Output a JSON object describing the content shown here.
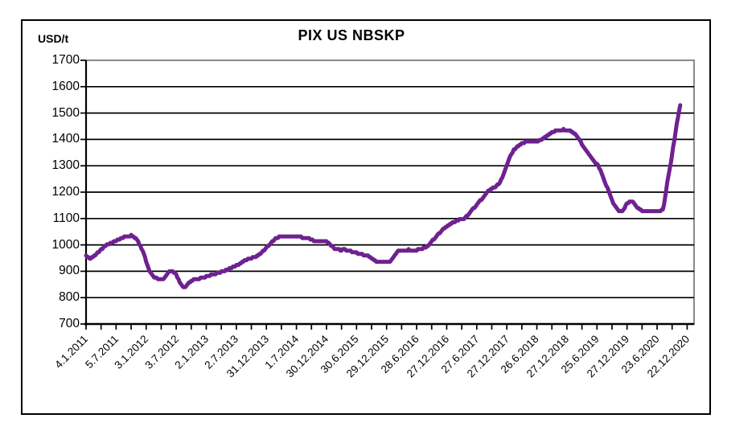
{
  "chart_data": {
    "type": "line",
    "title": "PIX US NBSKP",
    "legend": "none",
    "grid": "horizontal",
    "y_axis": {
      "label": "USD/t",
      "min": 700,
      "max": 1700,
      "step": 100,
      "tick_labels": [
        "1700",
        "1600",
        "1500",
        "1400",
        "1300",
        "1200",
        "1100",
        "1000",
        "900",
        "800",
        "700"
      ]
    },
    "x_axis": {
      "tick_labels": [
        "4.1.2011",
        "5.7.2011",
        "3.1.2012",
        "3.7.2012",
        "2.1.2013",
        "2.7.2013",
        "31.12.2013",
        "1.7.2014",
        "30.12.2014",
        "30.6.2015",
        "29.12.2015",
        "28.6.2016",
        "27.12.2016",
        "27.6.2017",
        "27.12.2017",
        "26.6.2018",
        "27.12.2018",
        "25.6.2019",
        "27.12.2019",
        "23.6.2020",
        "22.12.2020"
      ],
      "weeks_per_label": 26,
      "weeks_per_minor_tick": 13,
      "axis_span_weeks": 526
    },
    "series": [
      {
        "name": "PIX US NBSKP price",
        "unit": "USD/t",
        "color": "#6E2190",
        "x_unit": "weeks since 4.1.2011",
        "points": [
          [
            0,
            958
          ],
          [
            2,
            951
          ],
          [
            4,
            950
          ],
          [
            6,
            955
          ],
          [
            9,
            966
          ],
          [
            12,
            978
          ],
          [
            15,
            991
          ],
          [
            18,
            1000
          ],
          [
            21,
            1006
          ],
          [
            24,
            1011
          ],
          [
            27,
            1018
          ],
          [
            30,
            1024
          ],
          [
            33,
            1030
          ],
          [
            36,
            1034
          ],
          [
            39,
            1035
          ],
          [
            41,
            1032
          ],
          [
            43,
            1025
          ],
          [
            45,
            1013
          ],
          [
            47,
            996
          ],
          [
            49,
            976
          ],
          [
            51,
            952
          ],
          [
            53,
            922
          ],
          [
            55,
            899
          ],
          [
            57,
            885
          ],
          [
            59,
            877
          ],
          [
            62,
            871
          ],
          [
            66,
            870
          ],
          [
            68,
            875
          ],
          [
            70,
            889
          ],
          [
            72,
            897
          ],
          [
            75,
            898
          ],
          [
            77,
            892
          ],
          [
            79,
            878
          ],
          [
            81,
            858
          ],
          [
            83,
            844
          ],
          [
            85,
            838
          ],
          [
            87,
            845
          ],
          [
            89,
            856
          ],
          [
            91,
            864
          ],
          [
            94,
            869
          ],
          [
            98,
            872
          ],
          [
            103,
            878
          ],
          [
            108,
            885
          ],
          [
            113,
            892
          ],
          [
            118,
            899
          ],
          [
            123,
            907
          ],
          [
            128,
            917
          ],
          [
            132,
            926
          ],
          [
            136,
            937
          ],
          [
            140,
            946
          ],
          [
            144,
            951
          ],
          [
            147,
            955
          ],
          [
            150,
            963
          ],
          [
            153,
            975
          ],
          [
            156,
            988
          ],
          [
            159,
            1003
          ],
          [
            162,
            1015
          ],
          [
            164,
            1023
          ],
          [
            166,
            1028
          ],
          [
            169,
            1031
          ],
          [
            176,
            1030
          ],
          [
            183,
            1030
          ],
          [
            189,
            1028
          ],
          [
            192,
            1025
          ],
          [
            194,
            1022
          ],
          [
            196,
            1018
          ],
          [
            198,
            1015
          ],
          [
            204,
            1015
          ],
          [
            208,
            1013
          ],
          [
            210,
            1007
          ],
          [
            212,
            998
          ],
          [
            214,
            988
          ],
          [
            216,
            982
          ],
          [
            218,
            982
          ],
          [
            220,
            980
          ],
          [
            223,
            982
          ],
          [
            226,
            979
          ],
          [
            229,
            975
          ],
          [
            232,
            972
          ],
          [
            235,
            968
          ],
          [
            238,
            965
          ],
          [
            241,
            961
          ],
          [
            244,
            957
          ],
          [
            247,
            950
          ],
          [
            249,
            943
          ],
          [
            251,
            938
          ],
          [
            254,
            936
          ],
          [
            258,
            936
          ],
          [
            261,
            933
          ],
          [
            263,
            936
          ],
          [
            265,
            948
          ],
          [
            267,
            962
          ],
          [
            269,
            972
          ],
          [
            271,
            978
          ],
          [
            275,
            978
          ],
          [
            279,
            981
          ],
          [
            283,
            979
          ],
          [
            287,
            981
          ],
          [
            290,
            985
          ],
          [
            293,
            990
          ],
          [
            296,
            995
          ],
          [
            298,
            1005
          ],
          [
            300,
            1017
          ],
          [
            302,
            1028
          ],
          [
            304,
            1037
          ],
          [
            306,
            1046
          ],
          [
            308,
            1055
          ],
          [
            311,
            1067
          ],
          [
            314,
            1075
          ],
          [
            317,
            1083
          ],
          [
            320,
            1091
          ],
          [
            323,
            1095
          ],
          [
            326,
            1097
          ],
          [
            328,
            1102
          ],
          [
            330,
            1112
          ],
          [
            333,
            1127
          ],
          [
            336,
            1142
          ],
          [
            339,
            1158
          ],
          [
            342,
            1172
          ],
          [
            345,
            1188
          ],
          [
            347,
            1200
          ],
          [
            350,
            1212
          ],
          [
            353,
            1217
          ],
          [
            355,
            1222
          ],
          [
            358,
            1238
          ],
          [
            360,
            1255
          ],
          [
            362,
            1275
          ],
          [
            364,
            1300
          ],
          [
            366,
            1325
          ],
          [
            368,
            1345
          ],
          [
            370,
            1360
          ],
          [
            372,
            1368
          ],
          [
            375,
            1378
          ],
          [
            378,
            1386
          ],
          [
            381,
            1392
          ],
          [
            386,
            1393
          ],
          [
            391,
            1394
          ],
          [
            394,
            1400
          ],
          [
            398,
            1412
          ],
          [
            401,
            1420
          ],
          [
            404,
            1428
          ],
          [
            407,
            1433
          ],
          [
            410,
            1436
          ],
          [
            413,
            1437
          ],
          [
            416,
            1436
          ],
          [
            419,
            1433
          ],
          [
            421,
            1428
          ],
          [
            423,
            1420
          ],
          [
            425,
            1408
          ],
          [
            427,
            1396
          ],
          [
            429,
            1382
          ],
          [
            431,
            1368
          ],
          [
            434,
            1348
          ],
          [
            437,
            1330
          ],
          [
            440,
            1315
          ],
          [
            443,
            1300
          ],
          [
            445,
            1285
          ],
          [
            447,
            1262
          ],
          [
            449,
            1238
          ],
          [
            451,
            1215
          ],
          [
            453,
            1192
          ],
          [
            455,
            1170
          ],
          [
            457,
            1150
          ],
          [
            459,
            1137
          ],
          [
            461,
            1129
          ],
          [
            463,
            1125
          ],
          [
            465,
            1134
          ],
          [
            467,
            1150
          ],
          [
            469,
            1160
          ],
          [
            471,
            1165
          ],
          [
            473,
            1161
          ],
          [
            475,
            1151
          ],
          [
            477,
            1141
          ],
          [
            479,
            1134
          ],
          [
            481,
            1130
          ],
          [
            484,
            1128
          ],
          [
            488,
            1127
          ],
          [
            492,
            1127
          ],
          [
            495,
            1128
          ],
          [
            497,
            1129
          ],
          [
            499,
            1136
          ],
          [
            500,
            1152
          ],
          [
            501,
            1180
          ],
          [
            502,
            1212
          ],
          [
            503,
            1240
          ],
          [
            504,
            1265
          ],
          [
            505,
            1290
          ],
          [
            506,
            1316
          ],
          [
            507,
            1344
          ],
          [
            508,
            1372
          ],
          [
            509,
            1400
          ],
          [
            510,
            1428
          ],
          [
            511,
            1455
          ],
          [
            512,
            1482
          ],
          [
            513,
            1506
          ],
          [
            514,
            1527
          ]
        ]
      }
    ],
    "colors": {
      "line": "#6E2190",
      "gridline": "#000000",
      "plot_border": "#8a8a8a",
      "frame": "#000000",
      "background": "#ffffff"
    }
  }
}
